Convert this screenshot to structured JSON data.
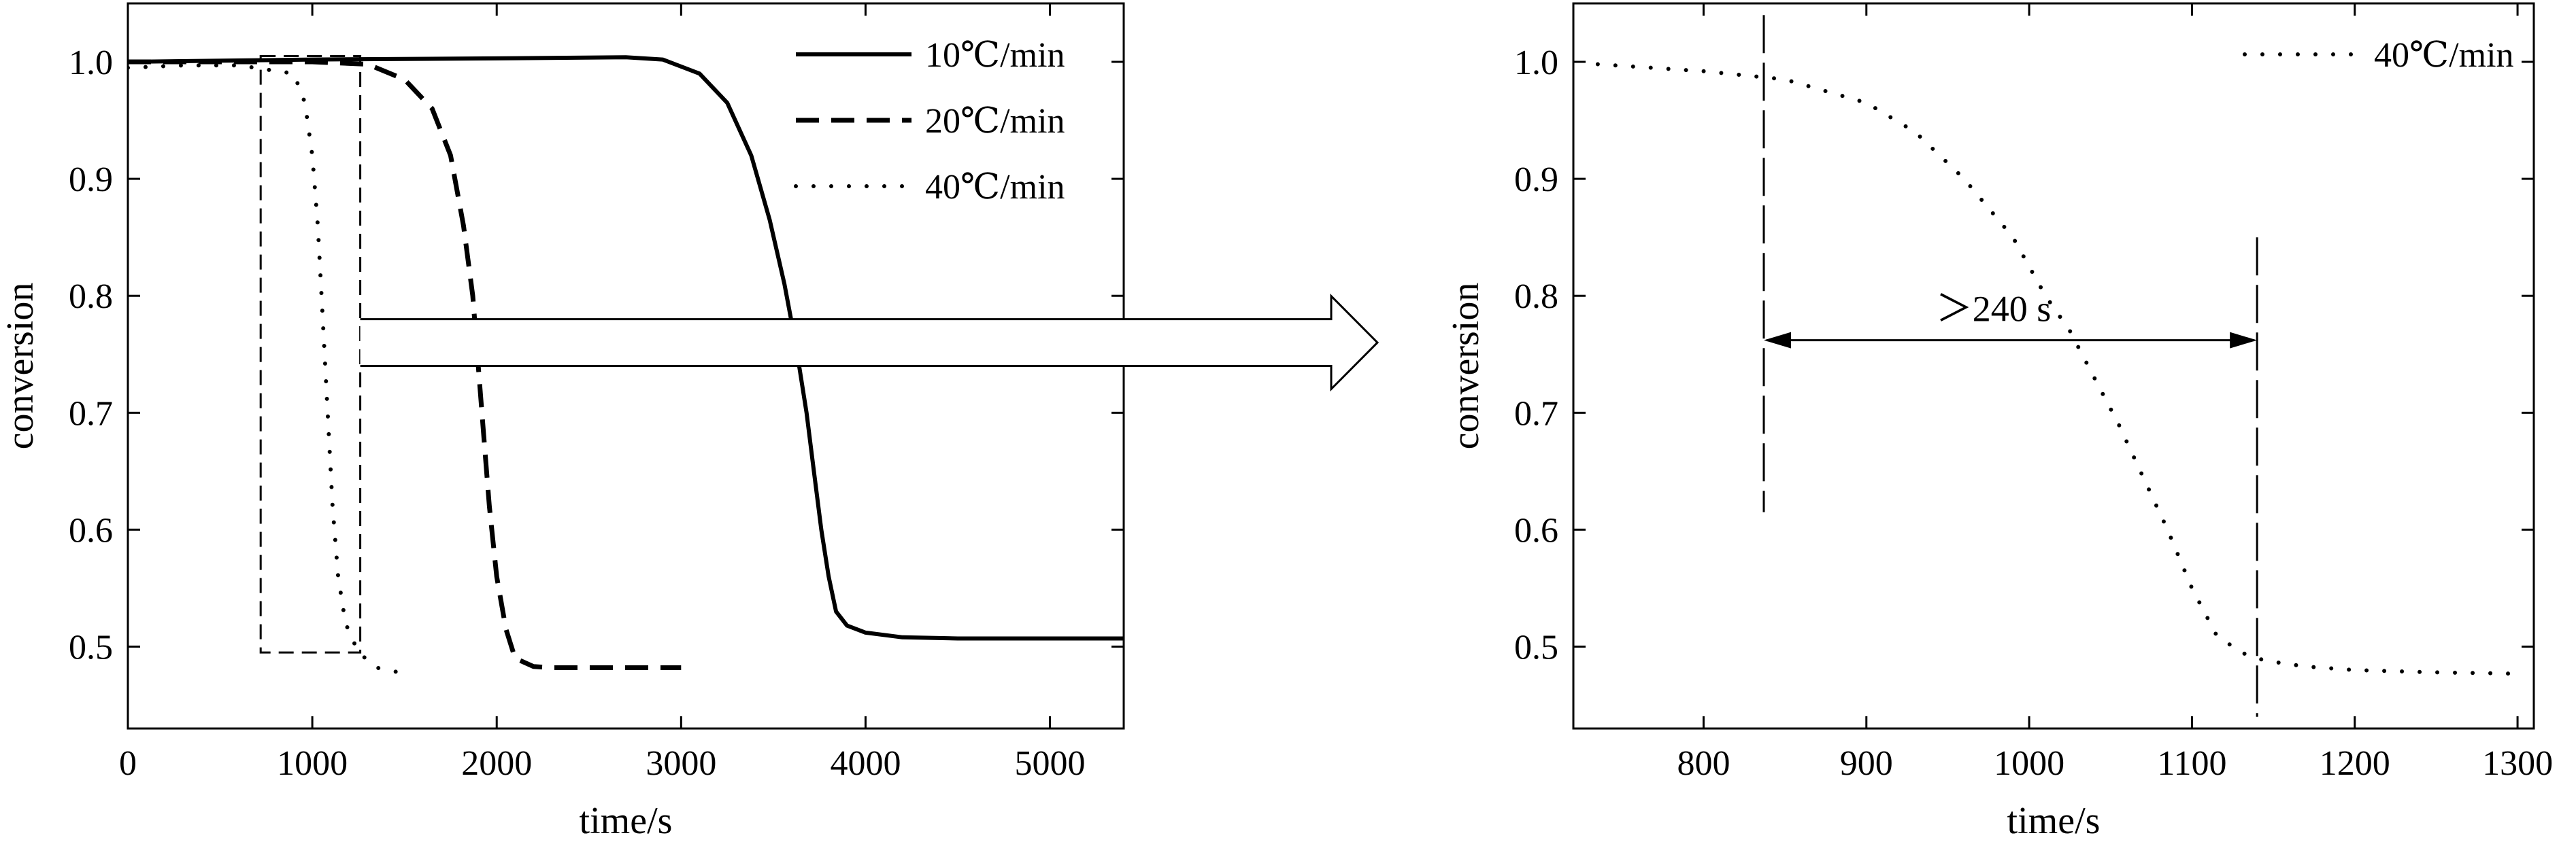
{
  "chart_data": [
    {
      "type": "line",
      "xlabel": "time/s",
      "ylabel": "conversion",
      "xlim": [
        0,
        5400
      ],
      "ylim": [
        0.43,
        1.05
      ],
      "xticks": [
        0,
        1000,
        2000,
        3000,
        4000,
        5000
      ],
      "yticks": [
        0.5,
        0.6,
        0.7,
        0.8,
        0.9,
        1.0
      ],
      "tick_labels_x": [
        "0",
        "1000",
        "2000",
        "3000",
        "4000",
        "5000"
      ],
      "tick_labels_y": [
        "0.5",
        "0.6",
        "0.7",
        "0.8",
        "0.9",
        "1.0"
      ],
      "grid": false,
      "legend_position": "top-right",
      "series": [
        {
          "name": "10℃/min",
          "style": "solid",
          "x": [
            0,
            1000,
            2000,
            2700,
            2900,
            3100,
            3250,
            3380,
            3480,
            3560,
            3620,
            3680,
            3720,
            3760,
            3800,
            3840,
            3900,
            4000,
            4200,
            4500,
            5000,
            5400
          ],
          "y": [
            1.0,
            1.002,
            1.003,
            1.004,
            1.002,
            0.99,
            0.965,
            0.92,
            0.865,
            0.81,
            0.76,
            0.7,
            0.65,
            0.6,
            0.56,
            0.53,
            0.518,
            0.512,
            0.508,
            0.507,
            0.507,
            0.507
          ]
        },
        {
          "name": "20℃/min",
          "style": "dashed",
          "x": [
            0,
            500,
            1000,
            1300,
            1500,
            1650,
            1750,
            1820,
            1870,
            1900,
            1930,
            1960,
            2000,
            2050,
            2100,
            2200,
            2300,
            2500,
            3000
          ],
          "y": [
            1.0,
            1.0,
            1.0,
            0.998,
            0.985,
            0.96,
            0.92,
            0.86,
            0.8,
            0.74,
            0.68,
            0.62,
            0.56,
            0.515,
            0.49,
            0.483,
            0.482,
            0.482,
            0.482
          ]
        },
        {
          "name": "40℃/min",
          "style": "dotted",
          "x": [
            0,
            300,
            600,
            900,
            960,
            1000,
            1030,
            1050,
            1070,
            1090,
            1110,
            1140,
            1180,
            1250,
            1350,
            1500
          ],
          "y": [
            0.995,
            0.997,
            0.997,
            0.99,
            0.965,
            0.92,
            0.86,
            0.8,
            0.74,
            0.68,
            0.62,
            0.56,
            0.52,
            0.495,
            0.482,
            0.477
          ]
        }
      ],
      "annotations": {
        "zoom_box": {
          "x": [
            720,
            1260
          ],
          "y": [
            0.495,
            1.005
          ]
        },
        "arrow": {
          "from_data_x": 1260,
          "y_top": 0.78,
          "y_bottom": 0.74
        }
      }
    },
    {
      "type": "line",
      "xlabel": "time/s",
      "ylabel": "conversion",
      "xlim": [
        720,
        1310
      ],
      "ylim": [
        0.43,
        1.05
      ],
      "xticks": [
        800,
        900,
        1000,
        1100,
        1200,
        1300
      ],
      "yticks": [
        0.5,
        0.6,
        0.7,
        0.8,
        0.9,
        1.0
      ],
      "tick_labels_x": [
        "800",
        "900",
        "1000",
        "1100",
        "1200",
        "1300"
      ],
      "tick_labels_y": [
        "0.5",
        "0.6",
        "0.7",
        "0.8",
        "0.9",
        "1.0"
      ],
      "grid": false,
      "legend_position": "top-right",
      "series": [
        {
          "name": "40℃/min",
          "style": "dotted",
          "x": [
            735,
            800,
            850,
            900,
            930,
            960,
            990,
            1010,
            1025,
            1040,
            1055,
            1070,
            1085,
            1100,
            1115,
            1130,
            1145,
            1170,
            1200,
            1250,
            1295
          ],
          "y": [
            0.998,
            0.992,
            0.985,
            0.965,
            0.94,
            0.9,
            0.85,
            0.8,
            0.77,
            0.73,
            0.69,
            0.645,
            0.6,
            0.55,
            0.51,
            0.495,
            0.488,
            0.483,
            0.48,
            0.478,
            0.477
          ]
        }
      ],
      "annotations": {
        "span_label": "＞240 s",
        "span_x": [
          837,
          1140
        ],
        "span_y": 0.762,
        "vlines": [
          {
            "x": 837,
            "y": [
              0.615,
              1.04
            ]
          },
          {
            "x": 1140,
            "y": [
              0.44,
              0.85
            ]
          }
        ]
      }
    }
  ]
}
